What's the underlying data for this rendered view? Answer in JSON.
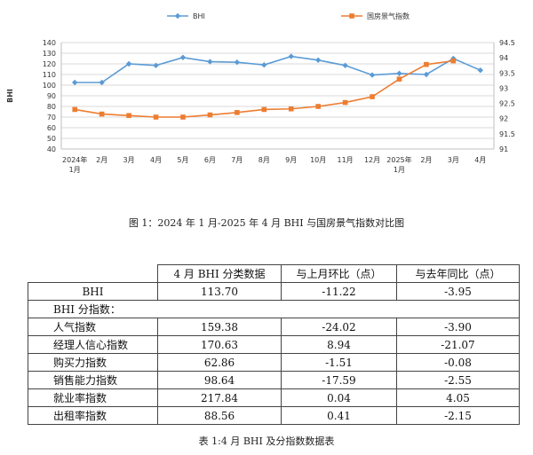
{
  "chart_data": {
    "type": "line",
    "title": "",
    "xlabel": "",
    "ylabel": "BHI",
    "y2label": "",
    "x_labels": [
      [
        "2024年",
        "1月"
      ],
      [
        "2月"
      ],
      [
        "3月"
      ],
      [
        "4月"
      ],
      [
        "5月"
      ],
      [
        "6月"
      ],
      [
        "7月"
      ],
      [
        "8月"
      ],
      [
        "9月"
      ],
      [
        "10月"
      ],
      [
        "11月"
      ],
      [
        "12月"
      ],
      [
        "2025年",
        "1月"
      ],
      [
        "2月"
      ],
      [
        "3月"
      ],
      [
        "4月"
      ]
    ],
    "ylim": [
      40,
      140
    ],
    "yticks": [
      40,
      50,
      60,
      70,
      80,
      90,
      100,
      110,
      120,
      130,
      140
    ],
    "y2lim": [
      91,
      94.5
    ],
    "y2ticks": [
      91,
      91.5,
      92,
      92.5,
      93,
      93.5,
      94,
      94.5
    ],
    "grid": true,
    "legend_position": "top",
    "series": [
      {
        "name": "BHI",
        "axis": "left",
        "color": "#5b9bd5",
        "marker": "diamond",
        "values": [
          102.5,
          102.5,
          120.0,
          118.5,
          126.0,
          122.0,
          121.5,
          119.0,
          127.0,
          123.5,
          118.5,
          109.5,
          111.0,
          110.0,
          125.0,
          114.0
        ]
      },
      {
        "name": "国房景气指数",
        "axis": "right",
        "color": "#ed7d31",
        "marker": "square",
        "values": [
          92.3,
          92.15,
          92.1,
          92.05,
          92.05,
          92.12,
          92.2,
          92.3,
          92.32,
          92.4,
          92.53,
          92.72,
          93.3,
          93.78,
          93.9
        ]
      }
    ]
  },
  "caption1": "图 1：2024 年 1 月-2025 年 4 月 BHI 与国房景气指数对比图",
  "table": {
    "headers": [
      "4 月 BHI 分类数据",
      "与上月环比（点）",
      "与去年同比（点）"
    ],
    "rows": [
      {
        "name": "BHI",
        "values": [
          "113.70",
          "-11.22",
          "-3.95"
        ],
        "sub": false
      },
      {
        "name": "BHI 分指数：",
        "values": [
          "",
          "",
          ""
        ],
        "sub": true,
        "section": true
      },
      {
        "name": "人气指数",
        "values": [
          "159.38",
          "-24.02",
          "-3.90"
        ],
        "sub": true
      },
      {
        "name": "经理人信心指数",
        "values": [
          "170.63",
          "8.94",
          "-21.07"
        ],
        "sub": true
      },
      {
        "name": "购买力指数",
        "values": [
          "62.86",
          "-1.51",
          "-0.08"
        ],
        "sub": true
      },
      {
        "name": "销售能力指数",
        "values": [
          "98.64",
          "-17.59",
          "-2.55"
        ],
        "sub": true
      },
      {
        "name": "就业率指数",
        "values": [
          "217.84",
          "0.04",
          "4.05"
        ],
        "sub": true
      },
      {
        "name": "出租率指数",
        "values": [
          "88.56",
          "0.41",
          "-2.15"
        ],
        "sub": true
      }
    ]
  },
  "caption2": "表 1:4 月 BHI 及分指数数据表"
}
